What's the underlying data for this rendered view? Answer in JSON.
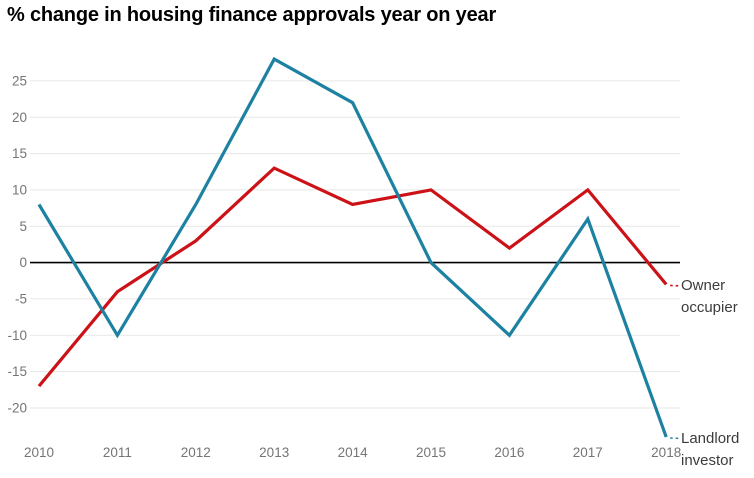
{
  "title": "% change in housing finance approvals year on year",
  "chart_data": {
    "type": "line",
    "title": "% change in housing finance approvals year on year",
    "xlabel": "",
    "ylabel": "",
    "categories": [
      "2010",
      "2011",
      "2012",
      "2013",
      "2014",
      "2015",
      "2016",
      "2017",
      "2018"
    ],
    "series": [
      {
        "name": "Owner occupier",
        "label_lines": [
          "Owner",
          "occupier"
        ],
        "color": "#cc1117",
        "values": [
          -17,
          -4,
          3,
          13,
          8,
          10,
          2,
          10,
          -3
        ]
      },
      {
        "name": "Landlord investor",
        "label_lines": [
          "Landlord",
          "investor"
        ],
        "color": "#1d81a2",
        "values": [
          8,
          -10,
          8,
          28,
          22,
          0,
          -10,
          6,
          -24
        ]
      }
    ],
    "y_ticks": [
      25,
      20,
      15,
      10,
      5,
      0,
      -5,
      -10,
      -15,
      -20
    ],
    "ylim": [
      -25,
      29
    ],
    "grid": "horizontal",
    "zero_line": true,
    "legend_position": "right-annotations",
    "colors": {
      "background": "#ffffff",
      "grid": "#e7e7e7",
      "zero_line": "#000000",
      "tick_text": "#757575",
      "annotation_text": "#3c3c3c",
      "title_text": "#000000"
    }
  }
}
